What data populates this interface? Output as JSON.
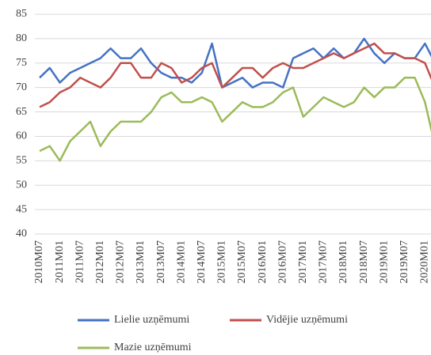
{
  "chart_data": {
    "type": "line",
    "categories": [
      "2010M07",
      null,
      "2011M01",
      null,
      "2011M07",
      null,
      "2012M01",
      null,
      "2012M07",
      null,
      "2013M01",
      null,
      "2013M07",
      null,
      "2014M01",
      null,
      "2014M07",
      null,
      "2015M01",
      null,
      "2015M07",
      null,
      "2016M01",
      null,
      "2016M07",
      null,
      "2017M01",
      null,
      "2017M07",
      null,
      "2018M01",
      null,
      "2018M07",
      null,
      "2019M01",
      null,
      "2019M07",
      null,
      "2020M01",
      null
    ],
    "series": [
      {
        "name": "Lielie uzņēmumi",
        "color": "#4472c4",
        "values": [
          72,
          74,
          71,
          73,
          74,
          75,
          76,
          78,
          76,
          76,
          78,
          75,
          73,
          72,
          72,
          71,
          73,
          79,
          70,
          71,
          72,
          70,
          71,
          71,
          70,
          76,
          77,
          78,
          76,
          78,
          76,
          77,
          80,
          77,
          75,
          77,
          76,
          76,
          79,
          75
        ]
      },
      {
        "name": "Vidējie uzņēmumi",
        "color": "#c0504d",
        "values": [
          66,
          67,
          69,
          70,
          72,
          71,
          70,
          72,
          75,
          75,
          72,
          72,
          75,
          74,
          71,
          72,
          74,
          75,
          70,
          72,
          74,
          74,
          72,
          74,
          75,
          74,
          74,
          75,
          76,
          77,
          76,
          77,
          78,
          79,
          77,
          77,
          76,
          76,
          75,
          70
        ]
      },
      {
        "name": "Mazie uzņēmumi",
        "color": "#9bbb59",
        "values": [
          57,
          58,
          55,
          59,
          61,
          63,
          58,
          61,
          63,
          63,
          63,
          65,
          68,
          69,
          67,
          67,
          68,
          67,
          63,
          65,
          67,
          66,
          66,
          67,
          69,
          70,
          64,
          66,
          68,
          67,
          66,
          67,
          70,
          68,
          70,
          70,
          72,
          72,
          67,
          58
        ]
      }
    ],
    "ylim": [
      40,
      85
    ],
    "yticks": [
      40,
      45,
      50,
      55,
      60,
      65,
      70,
      75,
      80,
      85
    ],
    "grid": true,
    "legend": "bottom"
  }
}
